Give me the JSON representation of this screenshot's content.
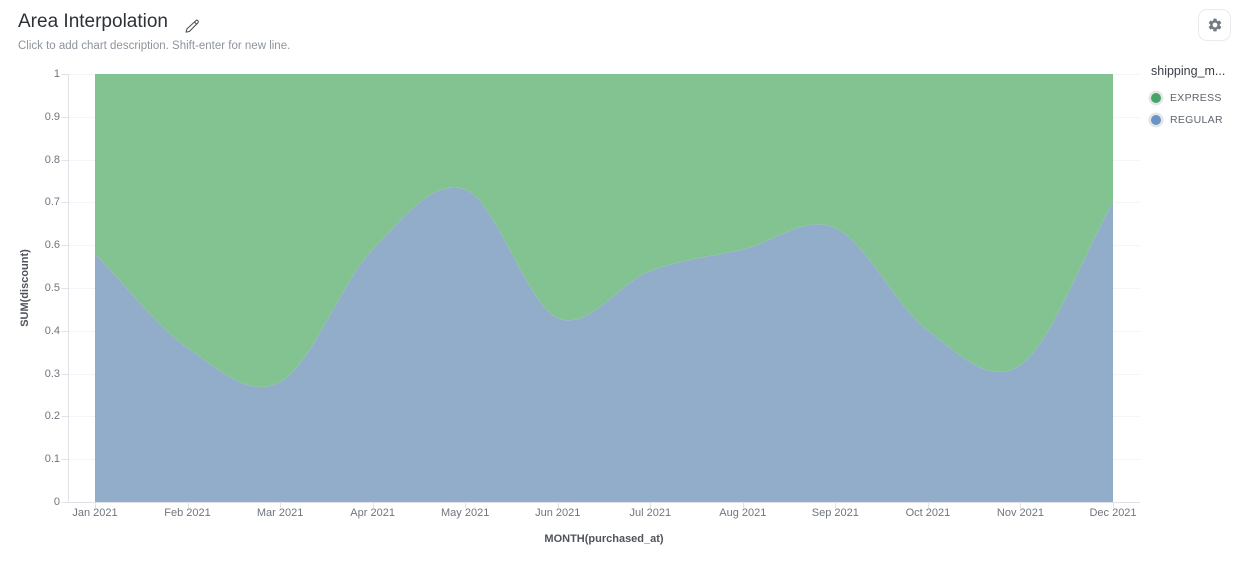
{
  "header": {
    "title": "Area Interpolation",
    "subtitle": "Click to add chart description. Shift-enter for new line.",
    "icons": {
      "edit": "pencil-icon",
      "settings": "gear-icon"
    }
  },
  "legend": {
    "title": "shipping_m...",
    "items": [
      {
        "label": "EXPRESS",
        "color": "#46a566"
      },
      {
        "label": "REGULAR",
        "color": "#6993c3"
      }
    ]
  },
  "chart_data": {
    "type": "area",
    "stacked": true,
    "interpolation": "smooth",
    "title": "Area Interpolation",
    "xlabel": "MONTH(purchased_at)",
    "ylabel": "SUM(discount)",
    "x": [
      "Jan 2021",
      "Feb 2021",
      "Mar 2021",
      "Apr 2021",
      "May 2021",
      "Jun 2021",
      "Jul 2021",
      "Aug 2021",
      "Sep 2021",
      "Oct 2021",
      "Nov 2021",
      "Dec 2021"
    ],
    "series": [
      {
        "name": "REGULAR",
        "fill": "#92adca",
        "values": [
          0.58,
          0.36,
          0.28,
          0.59,
          0.73,
          0.43,
          0.54,
          0.59,
          0.64,
          0.4,
          0.32,
          0.7
        ]
      },
      {
        "name": "EXPRESS",
        "fill": "#83c392",
        "values": [
          0.42,
          0.64,
          0.72,
          0.41,
          0.27,
          0.57,
          0.46,
          0.41,
          0.36,
          0.6,
          0.68,
          0.3
        ]
      }
    ],
    "ylim": [
      0,
      1
    ],
    "yticks": [
      0,
      0.1,
      0.2,
      0.3,
      0.4,
      0.5,
      0.6,
      0.7,
      0.8,
      0.9,
      1
    ],
    "grid": true,
    "legend_position": "right",
    "colors": {
      "axis_line": "#dfe3e8",
      "grid_line": "#f3f5f7",
      "tick_text": "#6f757e"
    }
  }
}
